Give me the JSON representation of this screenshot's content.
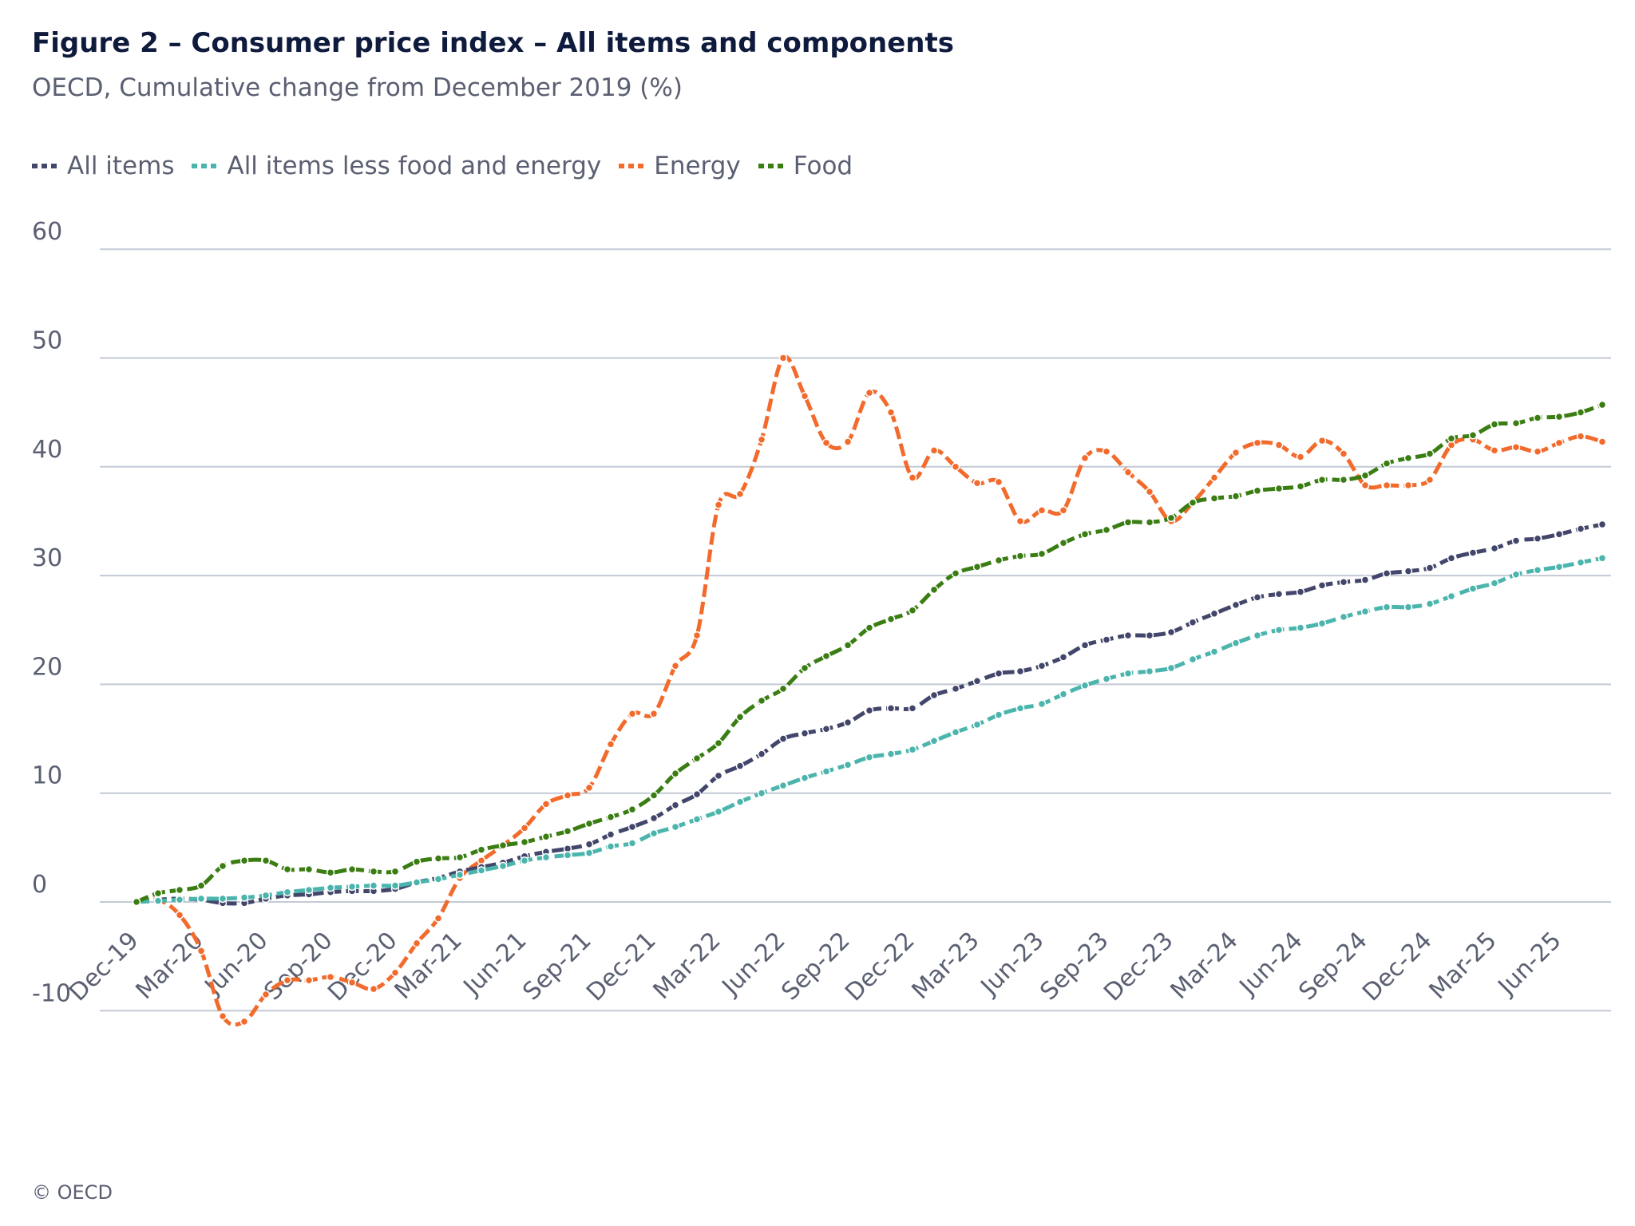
{
  "chart_data": {
    "type": "line",
    "title": "Figure 2 – Consumer price index – All items and components",
    "subtitle": "OECD, Cumulative change from December 2019 (%)",
    "xlabel": "",
    "ylabel": "",
    "ylim": [
      -10,
      60
    ],
    "yticks": [
      60,
      50,
      40,
      30,
      20,
      10,
      0,
      -10
    ],
    "grid": true,
    "legend_position": "top-left",
    "credit": "© OECD",
    "xtick_labels": [
      "Dec-19",
      "Mar-20",
      "Jun-20",
      "Sep-20",
      "Dec-20",
      "Mar-21",
      "Jun-21",
      "Sep-21",
      "Dec-21",
      "Mar-22",
      "Jun-22",
      "Sep-22",
      "Dec-22",
      "Mar-23",
      "Jun-23",
      "Sep-23",
      "Dec-23",
      "Mar-24",
      "Jun-24",
      "Sep-24",
      "Dec-24",
      "Mar-25",
      "Jun-25"
    ],
    "x_start": "Dec-19",
    "x_interval": "monthly",
    "series": [
      {
        "name": "All items",
        "color": "#42466a",
        "values": [
          0,
          0.2,
          0.3,
          0.2,
          -0.1,
          -0.1,
          0.3,
          0.6,
          0.7,
          0.9,
          1,
          1,
          1.2,
          1.8,
          2.2,
          2.8,
          3.2,
          3.6,
          4.2,
          4.6,
          4.9,
          5.3,
          6.2,
          6.9,
          7.7,
          8.9,
          9.9,
          11.6,
          12.5,
          13.6,
          15,
          15.5,
          15.9,
          16.5,
          17.6,
          17.8,
          17.8,
          19,
          19.6,
          20.3,
          21,
          21.2,
          21.7,
          22.5,
          23.6,
          24.1,
          24.5,
          24.5,
          24.8,
          25.7,
          26.5,
          27.3,
          28,
          28.3,
          28.5,
          29.1,
          29.4,
          29.6,
          30.2,
          30.4,
          30.7,
          31.6,
          32.1,
          32.5,
          33.2,
          33.4,
          33.8,
          34.3,
          34.7
        ]
      },
      {
        "name": "All items less food and energy",
        "color": "#4bb5ad",
        "values": [
          0,
          0.1,
          0.2,
          0.3,
          0.3,
          0.4,
          0.6,
          0.9,
          1.1,
          1.3,
          1.4,
          1.5,
          1.5,
          1.8,
          2.1,
          2.5,
          2.9,
          3.3,
          3.8,
          4.1,
          4.3,
          4.5,
          5.1,
          5.4,
          6.3,
          6.9,
          7.6,
          8.3,
          9.2,
          10,
          10.7,
          11.4,
          12,
          12.6,
          13.3,
          13.6,
          14,
          14.8,
          15.6,
          16.3,
          17.2,
          17.8,
          18.2,
          19.1,
          19.9,
          20.5,
          21,
          21.2,
          21.5,
          22.3,
          23,
          23.8,
          24.5,
          25,
          25.2,
          25.6,
          26.2,
          26.7,
          27.1,
          27.1,
          27.4,
          28.1,
          28.8,
          29.3,
          30.1,
          30.5,
          30.8,
          31.2,
          31.6
        ]
      },
      {
        "name": "Energy",
        "color": "#f26b2c",
        "values": [
          0,
          0.2,
          -1.2,
          -4.5,
          -10.5,
          -11,
          -8.5,
          -7.2,
          -7.2,
          -6.9,
          -7.4,
          -8,
          -6.5,
          -3.8,
          -1.5,
          2.2,
          3.8,
          5.2,
          6.8,
          9,
          9.8,
          10.5,
          14.5,
          17.3,
          17.3,
          21.7,
          24.5,
          36.5,
          37.5,
          42.5,
          50,
          46.5,
          42.2,
          42.3,
          46.8,
          45,
          39,
          41.5,
          40,
          38.5,
          38.6,
          35,
          36,
          36,
          40.8,
          41.4,
          39.5,
          37.7,
          35,
          36.7,
          39,
          41.3,
          42.2,
          42,
          40.9,
          42.4,
          41.2,
          38.3,
          38.3,
          38.3,
          38.8,
          42,
          42.5,
          41.5,
          41.8,
          41.4,
          42.2,
          42.8,
          42.3
        ]
      },
      {
        "name": "Food",
        "color": "#3a7d12",
        "values": [
          0,
          0.8,
          1.1,
          1.5,
          3.3,
          3.8,
          3.8,
          3,
          3,
          2.7,
          3,
          2.8,
          2.8,
          3.7,
          4,
          4.1,
          4.8,
          5.2,
          5.5,
          6,
          6.5,
          7.2,
          7.8,
          8.5,
          9.8,
          11.8,
          13.2,
          14.6,
          17,
          18.5,
          19.6,
          21.5,
          22.6,
          23.6,
          25.2,
          26,
          26.8,
          28.7,
          30.2,
          30.8,
          31.4,
          31.8,
          32,
          33,
          33.8,
          34.2,
          34.9,
          34.9,
          35.3,
          36.7,
          37.1,
          37.3,
          37.8,
          38,
          38.2,
          38.8,
          38.8,
          39.2,
          40.3,
          40.8,
          41.2,
          42.6,
          42.9,
          43.9,
          44,
          44.5,
          44.6,
          45,
          45.7
        ]
      }
    ]
  }
}
